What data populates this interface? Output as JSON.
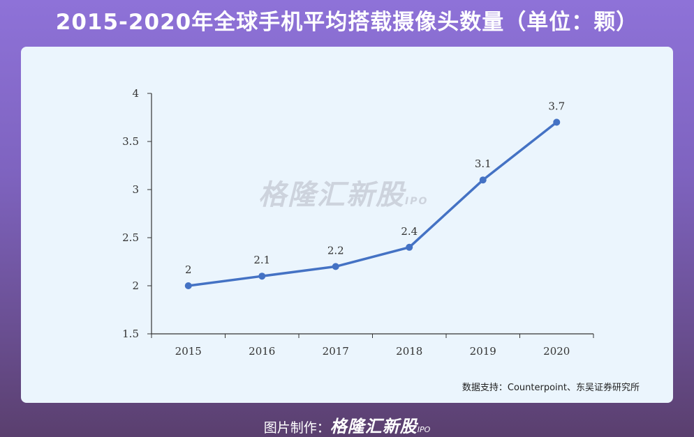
{
  "title": "2015-2020年全球手机平均搭载摄像头数量（单位：颗）",
  "watermark": {
    "brand": "格隆汇新股",
    "tag": "IPO"
  },
  "source": "数据支持：Counterpoint、东吴证券研究所",
  "footer": {
    "label": "图片制作：",
    "brand": "格隆汇新股",
    "tag": "IPO"
  },
  "colors": {
    "line": "#4472c4",
    "axis": "#333333"
  },
  "chart_data": {
    "type": "line",
    "categories": [
      "2015",
      "2016",
      "2017",
      "2018",
      "2019",
      "2020"
    ],
    "values": [
      2,
      2.1,
      2.2,
      2.4,
      3.1,
      3.7
    ],
    "data_labels": [
      "2",
      "2.1",
      "2.2",
      "2.4",
      "3.1",
      "3.7"
    ],
    "ylim": [
      1.5,
      4
    ],
    "yticks": [
      1.5,
      2,
      2.5,
      3,
      3.5,
      4
    ],
    "ytick_labels": [
      "1.5",
      "2",
      "2.5",
      "3",
      "3.5",
      "4"
    ],
    "grid": false
  }
}
